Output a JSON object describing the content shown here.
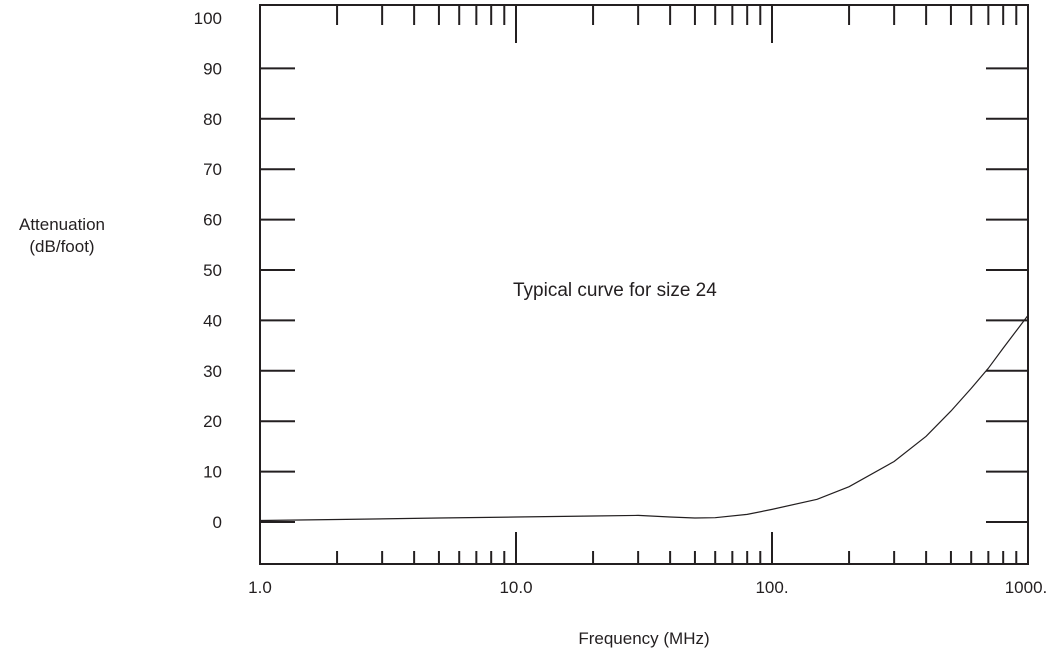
{
  "chart_data": {
    "type": "line",
    "x_scale": "log",
    "xlabel": "Frequency (MHz)",
    "ylabel_lines": [
      "Attenuation",
      "(dB/foot)"
    ],
    "annotation": "Typical curve for size 24",
    "xlim": [
      1.0,
      1000.0
    ],
    "ylim": [
      -8,
      100
    ],
    "x_tick_labels": [
      {
        "value": 1,
        "label": "1.0"
      },
      {
        "value": 10,
        "label": "10.0"
      },
      {
        "value": 100,
        "label": "100."
      },
      {
        "value": 1000,
        "label": "1000."
      }
    ],
    "y_tick_labels": [
      {
        "value": 100,
        "label": "100"
      },
      {
        "value": 90,
        "label": "90"
      },
      {
        "value": 80,
        "label": "80"
      },
      {
        "value": 70,
        "label": "70"
      },
      {
        "value": 60,
        "label": "60"
      },
      {
        "value": 50,
        "label": "50"
      },
      {
        "value": 40,
        "label": "40"
      },
      {
        "value": 30,
        "label": "30"
      },
      {
        "value": 20,
        "label": "20"
      },
      {
        "value": 10,
        "label": "10"
      },
      {
        "value": 0,
        "label": "0"
      }
    ],
    "x_minor_ticks": [
      2,
      3,
      4,
      5,
      6,
      7,
      8,
      9,
      20,
      30,
      40,
      50,
      60,
      70,
      80,
      90,
      200,
      300,
      400,
      500,
      600,
      700,
      800,
      900
    ],
    "series": [
      {
        "values": [
          {
            "x": 1.0,
            "y": 0.3
          },
          {
            "x": 2.0,
            "y": 0.5
          },
          {
            "x": 5.0,
            "y": 0.8
          },
          {
            "x": 10.0,
            "y": 1.0
          },
          {
            "x": 20.0,
            "y": 1.2
          },
          {
            "x": 30.0,
            "y": 1.3
          },
          {
            "x": 40.0,
            "y": 1.0
          },
          {
            "x": 50.0,
            "y": 0.8
          },
          {
            "x": 60.0,
            "y": 0.85
          },
          {
            "x": 80.0,
            "y": 1.5
          },
          {
            "x": 100.0,
            "y": 2.5
          },
          {
            "x": 150.0,
            "y": 4.5
          },
          {
            "x": 200.0,
            "y": 7.0
          },
          {
            "x": 300.0,
            "y": 12.0
          },
          {
            "x": 400.0,
            "y": 17.0
          },
          {
            "x": 500.0,
            "y": 22.0
          },
          {
            "x": 600.0,
            "y": 26.5
          },
          {
            "x": 700.0,
            "y": 30.5
          },
          {
            "x": 800.0,
            "y": 34.5
          },
          {
            "x": 1000.0,
            "y": 41.0
          }
        ]
      }
    ],
    "grid": false
  }
}
